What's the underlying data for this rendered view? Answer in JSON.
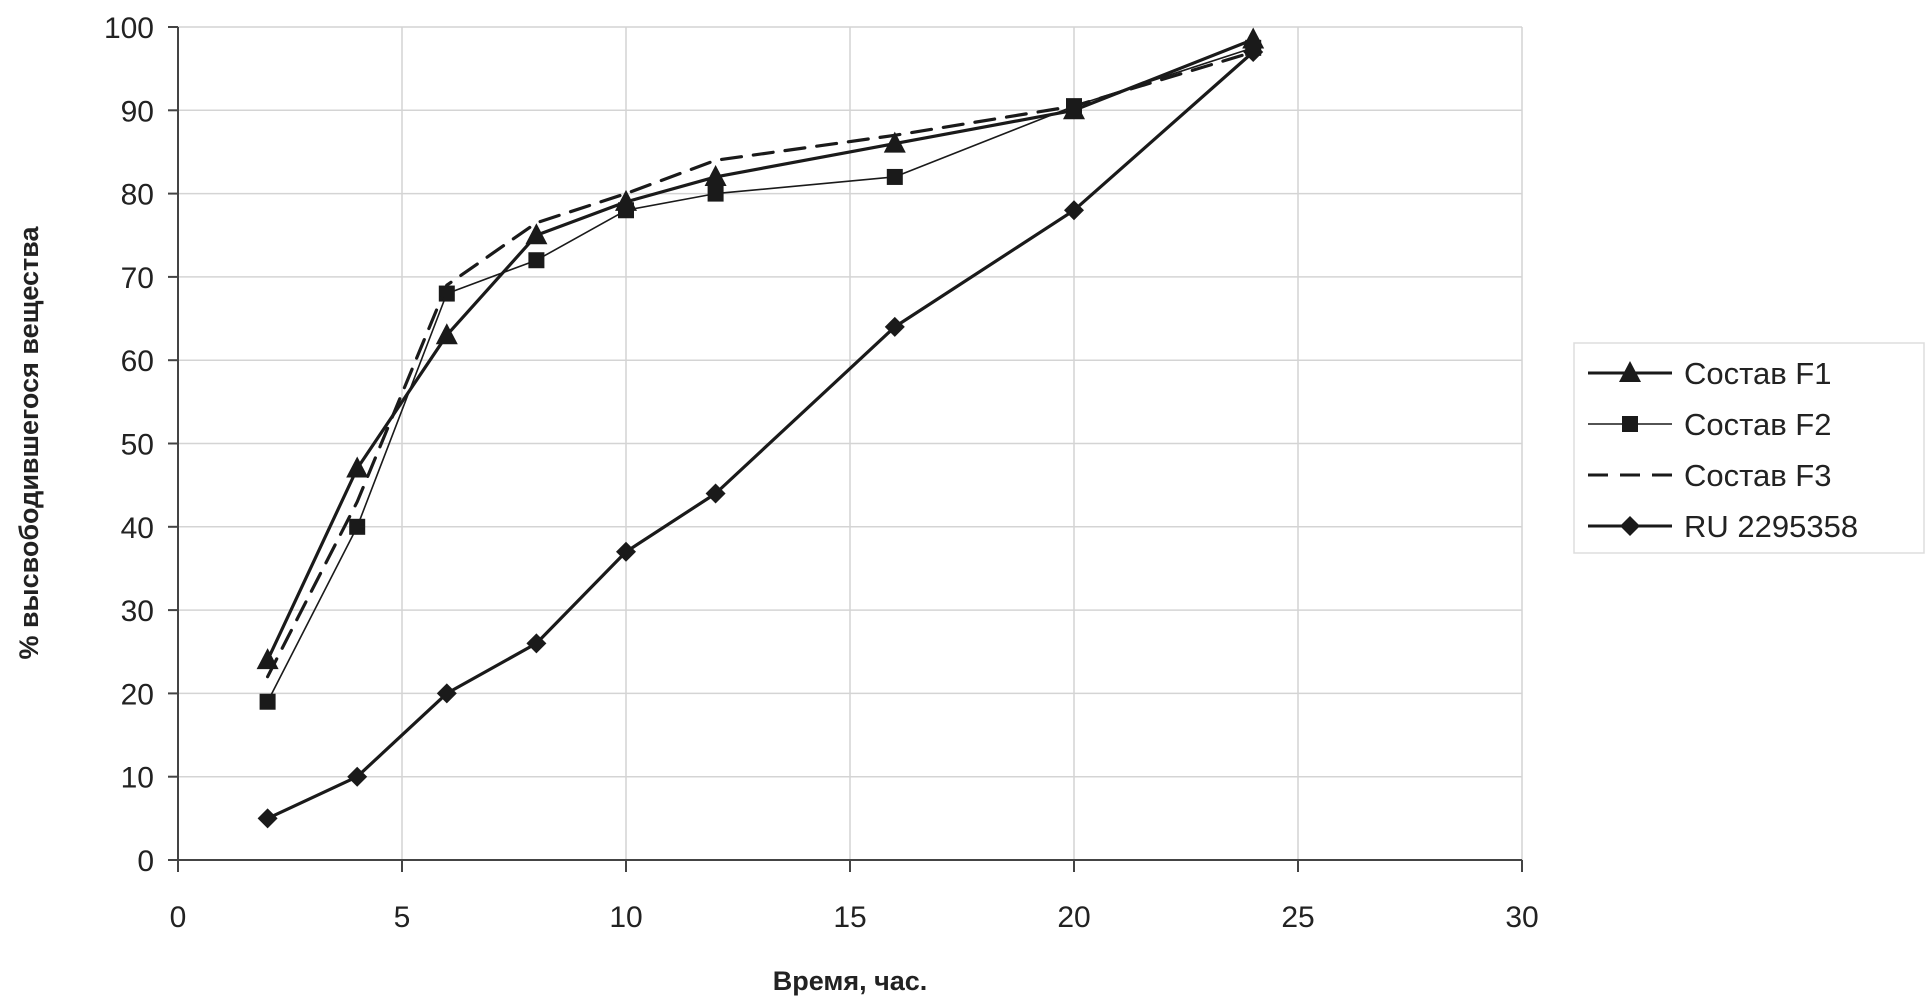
{
  "chart_data": {
    "type": "line",
    "title": "",
    "xlabel": "Время, час.",
    "ylabel": "% высвободившегося вещества",
    "xlim": [
      0,
      30
    ],
    "ylim": [
      0,
      100
    ],
    "xticks": [
      0,
      5,
      10,
      15,
      20,
      25,
      30
    ],
    "yticks": [
      0,
      10,
      20,
      30,
      40,
      50,
      60,
      70,
      80,
      90,
      100
    ],
    "grid": {
      "vertical": true,
      "horizontal": true
    },
    "legend_position": "right",
    "series": [
      {
        "name": "Состав F1",
        "marker": "triangle",
        "line": "solid",
        "stroke_weight": "bold",
        "color": "#1a1a1a",
        "x": [
          2,
          4,
          6,
          8,
          10,
          12,
          16,
          20,
          24
        ],
        "y": [
          24,
          47,
          63,
          75,
          79,
          82,
          86,
          90,
          98.5
        ]
      },
      {
        "name": "Состав F2",
        "marker": "square",
        "line": "solid",
        "stroke_weight": "thin",
        "color": "#1a1a1a",
        "x": [
          2,
          4,
          6,
          8,
          10,
          12,
          16,
          20,
          24
        ],
        "y": [
          19,
          40,
          68,
          72,
          78,
          80,
          82,
          90.5,
          97.5
        ]
      },
      {
        "name": "Состав F3",
        "marker": "none",
        "line": "dashed",
        "stroke_weight": "bold",
        "color": "#1a1a1a",
        "x": [
          2,
          4,
          6,
          8,
          10,
          12,
          16,
          20,
          24
        ],
        "y": [
          22,
          43,
          69,
          76.5,
          80,
          84,
          87,
          90.5,
          97
        ]
      },
      {
        "name": "RU 2295358",
        "marker": "diamond",
        "line": "solid",
        "stroke_weight": "bold",
        "color": "#1a1a1a",
        "x": [
          2,
          4,
          6,
          8,
          10,
          12,
          16,
          20,
          24
        ],
        "y": [
          5,
          10,
          20,
          26,
          37,
          44,
          64,
          78,
          97
        ]
      }
    ]
  }
}
